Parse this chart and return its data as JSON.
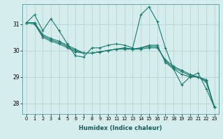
{
  "xlabel": "Humidex (Indice chaleur)",
  "ylabel": "",
  "background_color": "#d5eeed",
  "grid_color": "#b0cecc",
  "line_color": "#1a7a6e",
  "xlim": [
    -0.5,
    23.5
  ],
  "ylim": [
    27.6,
    31.75
  ],
  "yticks": [
    28,
    29,
    30,
    31
  ],
  "xticks": [
    0,
    1,
    2,
    3,
    4,
    5,
    6,
    7,
    8,
    9,
    10,
    11,
    12,
    13,
    14,
    15,
    16,
    17,
    18,
    19,
    20,
    21,
    22,
    23
  ],
  "series": [
    [
      31.05,
      31.35,
      30.75,
      31.2,
      30.75,
      30.25,
      29.8,
      29.75,
      30.1,
      30.1,
      30.2,
      30.25,
      30.2,
      30.1,
      31.35,
      31.65,
      31.1,
      30.1,
      29.3,
      28.7,
      29.0,
      29.15,
      28.55,
      27.85
    ],
    [
      31.05,
      31.05,
      30.6,
      30.45,
      30.35,
      30.2,
      30.05,
      29.9,
      29.9,
      29.95,
      30.0,
      30.05,
      30.1,
      30.05,
      30.1,
      30.2,
      30.2,
      29.55,
      29.3,
      29.1,
      29.0,
      29.0,
      28.8,
      27.85
    ],
    [
      31.05,
      31.05,
      30.55,
      30.4,
      30.3,
      30.15,
      30.0,
      29.9,
      29.9,
      29.95,
      30.0,
      30.05,
      30.1,
      30.05,
      30.1,
      30.15,
      30.15,
      29.6,
      29.35,
      29.2,
      29.05,
      29.0,
      28.85,
      27.85
    ],
    [
      31.05,
      31.0,
      30.5,
      30.35,
      30.25,
      30.1,
      29.95,
      29.9,
      29.9,
      29.95,
      30.0,
      30.05,
      30.05,
      30.05,
      30.05,
      30.1,
      30.1,
      29.65,
      29.4,
      29.25,
      29.1,
      29.0,
      28.9,
      27.85
    ]
  ]
}
